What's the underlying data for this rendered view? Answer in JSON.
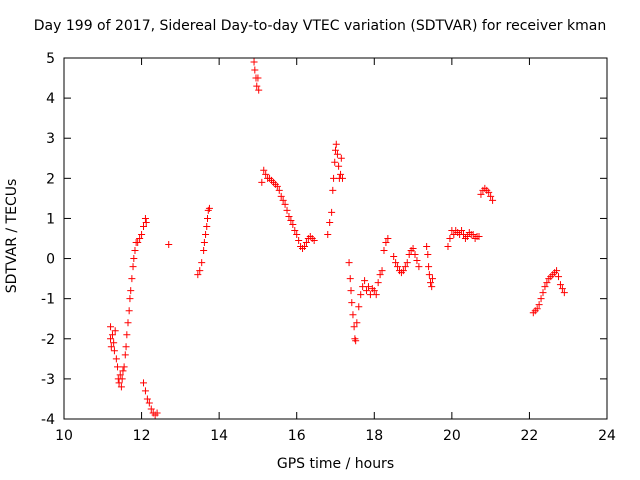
{
  "chart_data": {
    "type": "scatter",
    "title": "Day 199 of 2017, Sidereal Day-to-day VTEC variation (SDTVAR) for receiver kman",
    "xlabel": "GPS time / hours",
    "ylabel": "SDTVAR / TECUs",
    "xlim": [
      10,
      24
    ],
    "ylim": [
      -4,
      5
    ],
    "xticks": [
      "10",
      "12",
      "14",
      "16",
      "18",
      "20",
      "22",
      "24"
    ],
    "yticks": [
      "-4",
      "-3",
      "-2",
      "-1",
      "0",
      "1",
      "2",
      "3",
      "4",
      "5"
    ],
    "grid": false,
    "marker": "+",
    "color": "#ff0000",
    "series": [
      {
        "name": "kman",
        "points": [
          [
            11.2,
            -1.7
          ],
          [
            11.2,
            -2.0
          ],
          [
            11.22,
            -2.2
          ],
          [
            11.25,
            -1.9
          ],
          [
            11.28,
            -2.1
          ],
          [
            11.3,
            -2.3
          ],
          [
            11.32,
            -1.8
          ],
          [
            11.35,
            -2.5
          ],
          [
            11.38,
            -2.7
          ],
          [
            11.4,
            -3.0
          ],
          [
            11.42,
            -3.1
          ],
          [
            11.45,
            -2.9
          ],
          [
            11.48,
            -3.2
          ],
          [
            11.5,
            -3.0
          ],
          [
            11.52,
            -2.8
          ],
          [
            11.55,
            -2.7
          ],
          [
            11.58,
            -2.4
          ],
          [
            11.6,
            -2.2
          ],
          [
            11.62,
            -1.9
          ],
          [
            11.65,
            -1.6
          ],
          [
            11.68,
            -1.3
          ],
          [
            11.7,
            -1.0
          ],
          [
            11.72,
            -0.8
          ],
          [
            11.75,
            -0.5
          ],
          [
            11.78,
            -0.2
          ],
          [
            11.8,
            0.0
          ],
          [
            11.83,
            0.2
          ],
          [
            11.86,
            0.4
          ],
          [
            11.9,
            0.4
          ],
          [
            11.95,
            0.5
          ],
          [
            12.0,
            0.6
          ],
          [
            12.05,
            0.8
          ],
          [
            12.1,
            1.0
          ],
          [
            12.12,
            0.9
          ],
          [
            12.05,
            -3.1
          ],
          [
            12.1,
            -3.3
          ],
          [
            12.15,
            -3.5
          ],
          [
            12.2,
            -3.6
          ],
          [
            12.25,
            -3.75
          ],
          [
            12.3,
            -3.85
          ],
          [
            12.35,
            -3.9
          ],
          [
            12.4,
            -3.85
          ],
          [
            12.7,
            0.35
          ],
          [
            13.45,
            -0.4
          ],
          [
            13.5,
            -0.3
          ],
          [
            13.55,
            -0.1
          ],
          [
            13.6,
            0.2
          ],
          [
            13.62,
            0.4
          ],
          [
            13.65,
            0.6
          ],
          [
            13.68,
            0.8
          ],
          [
            13.7,
            1.0
          ],
          [
            13.72,
            1.2
          ],
          [
            13.75,
            1.25
          ],
          [
            14.9,
            4.9
          ],
          [
            14.92,
            4.7
          ],
          [
            14.95,
            4.5
          ],
          [
            14.97,
            4.3
          ],
          [
            15.0,
            4.5
          ],
          [
            15.02,
            4.2
          ],
          [
            15.1,
            1.9
          ],
          [
            15.15,
            2.2
          ],
          [
            15.2,
            2.1
          ],
          [
            15.25,
            2.0
          ],
          [
            15.3,
            2.0
          ],
          [
            15.35,
            1.95
          ],
          [
            15.4,
            1.9
          ],
          [
            15.45,
            1.85
          ],
          [
            15.5,
            1.8
          ],
          [
            15.55,
            1.7
          ],
          [
            15.6,
            1.55
          ],
          [
            15.65,
            1.45
          ],
          [
            15.7,
            1.35
          ],
          [
            15.75,
            1.2
          ],
          [
            15.8,
            1.05
          ],
          [
            15.85,
            0.95
          ],
          [
            15.9,
            0.85
          ],
          [
            15.95,
            0.7
          ],
          [
            16.0,
            0.6
          ],
          [
            16.05,
            0.45
          ],
          [
            16.1,
            0.3
          ],
          [
            16.15,
            0.25
          ],
          [
            16.2,
            0.3
          ],
          [
            16.25,
            0.4
          ],
          [
            16.3,
            0.5
          ],
          [
            16.35,
            0.55
          ],
          [
            16.4,
            0.5
          ],
          [
            16.45,
            0.45
          ],
          [
            16.8,
            0.6
          ],
          [
            16.85,
            0.9
          ],
          [
            16.9,
            1.15
          ],
          [
            16.93,
            1.7
          ],
          [
            16.95,
            2.0
          ],
          [
            16.98,
            2.4
          ],
          [
            17.0,
            2.7
          ],
          [
            17.02,
            2.85
          ],
          [
            17.05,
            2.6
          ],
          [
            17.08,
            2.3
          ],
          [
            17.1,
            2.0
          ],
          [
            17.13,
            2.1
          ],
          [
            17.15,
            2.5
          ],
          [
            17.18,
            2.0
          ],
          [
            17.35,
            -0.1
          ],
          [
            17.38,
            -0.5
          ],
          [
            17.4,
            -0.8
          ],
          [
            17.42,
            -1.1
          ],
          [
            17.45,
            -1.4
          ],
          [
            17.48,
            -1.7
          ],
          [
            17.5,
            -2.0
          ],
          [
            17.52,
            -2.05
          ],
          [
            17.55,
            -1.6
          ],
          [
            17.6,
            -1.2
          ],
          [
            17.65,
            -0.9
          ],
          [
            17.7,
            -0.7
          ],
          [
            17.75,
            -0.55
          ],
          [
            17.8,
            -0.8
          ],
          [
            17.85,
            -0.7
          ],
          [
            17.9,
            -0.9
          ],
          [
            17.95,
            -0.75
          ],
          [
            18.0,
            -0.8
          ],
          [
            18.05,
            -0.9
          ],
          [
            18.1,
            -0.6
          ],
          [
            18.15,
            -0.4
          ],
          [
            18.2,
            -0.3
          ],
          [
            18.25,
            0.2
          ],
          [
            18.3,
            0.4
          ],
          [
            18.35,
            0.5
          ],
          [
            18.5,
            0.05
          ],
          [
            18.55,
            -0.1
          ],
          [
            18.6,
            -0.2
          ],
          [
            18.65,
            -0.3
          ],
          [
            18.7,
            -0.35
          ],
          [
            18.75,
            -0.3
          ],
          [
            18.8,
            -0.2
          ],
          [
            18.85,
            -0.1
          ],
          [
            18.9,
            0.1
          ],
          [
            18.95,
            0.2
          ],
          [
            19.0,
            0.25
          ],
          [
            19.05,
            0.1
          ],
          [
            19.1,
            -0.05
          ],
          [
            19.15,
            -0.2
          ],
          [
            19.35,
            0.3
          ],
          [
            19.38,
            0.1
          ],
          [
            19.4,
            -0.2
          ],
          [
            19.42,
            -0.4
          ],
          [
            19.45,
            -0.6
          ],
          [
            19.48,
            -0.7
          ],
          [
            19.5,
            -0.5
          ],
          [
            19.9,
            0.3
          ],
          [
            19.95,
            0.5
          ],
          [
            20.0,
            0.7
          ],
          [
            20.05,
            0.6
          ],
          [
            20.1,
            0.7
          ],
          [
            20.15,
            0.65
          ],
          [
            20.2,
            0.6
          ],
          [
            20.25,
            0.7
          ],
          [
            20.3,
            0.6
          ],
          [
            20.35,
            0.5
          ],
          [
            20.4,
            0.55
          ],
          [
            20.45,
            0.65
          ],
          [
            20.5,
            0.6
          ],
          [
            20.55,
            0.6
          ],
          [
            20.6,
            0.5
          ],
          [
            20.65,
            0.55
          ],
          [
            20.7,
            0.55
          ],
          [
            20.75,
            1.6
          ],
          [
            20.8,
            1.7
          ],
          [
            20.85,
            1.75
          ],
          [
            20.9,
            1.7
          ],
          [
            20.95,
            1.65
          ],
          [
            21.0,
            1.55
          ],
          [
            21.05,
            1.45
          ],
          [
            22.1,
            -1.35
          ],
          [
            22.15,
            -1.3
          ],
          [
            22.2,
            -1.25
          ],
          [
            22.25,
            -1.15
          ],
          [
            22.3,
            -1.0
          ],
          [
            22.35,
            -0.85
          ],
          [
            22.4,
            -0.7
          ],
          [
            22.45,
            -0.6
          ],
          [
            22.5,
            -0.5
          ],
          [
            22.55,
            -0.45
          ],
          [
            22.6,
            -0.4
          ],
          [
            22.65,
            -0.35
          ],
          [
            22.7,
            -0.3
          ],
          [
            22.75,
            -0.45
          ],
          [
            22.8,
            -0.65
          ],
          [
            22.85,
            -0.75
          ],
          [
            22.9,
            -0.85
          ]
        ]
      }
    ]
  }
}
